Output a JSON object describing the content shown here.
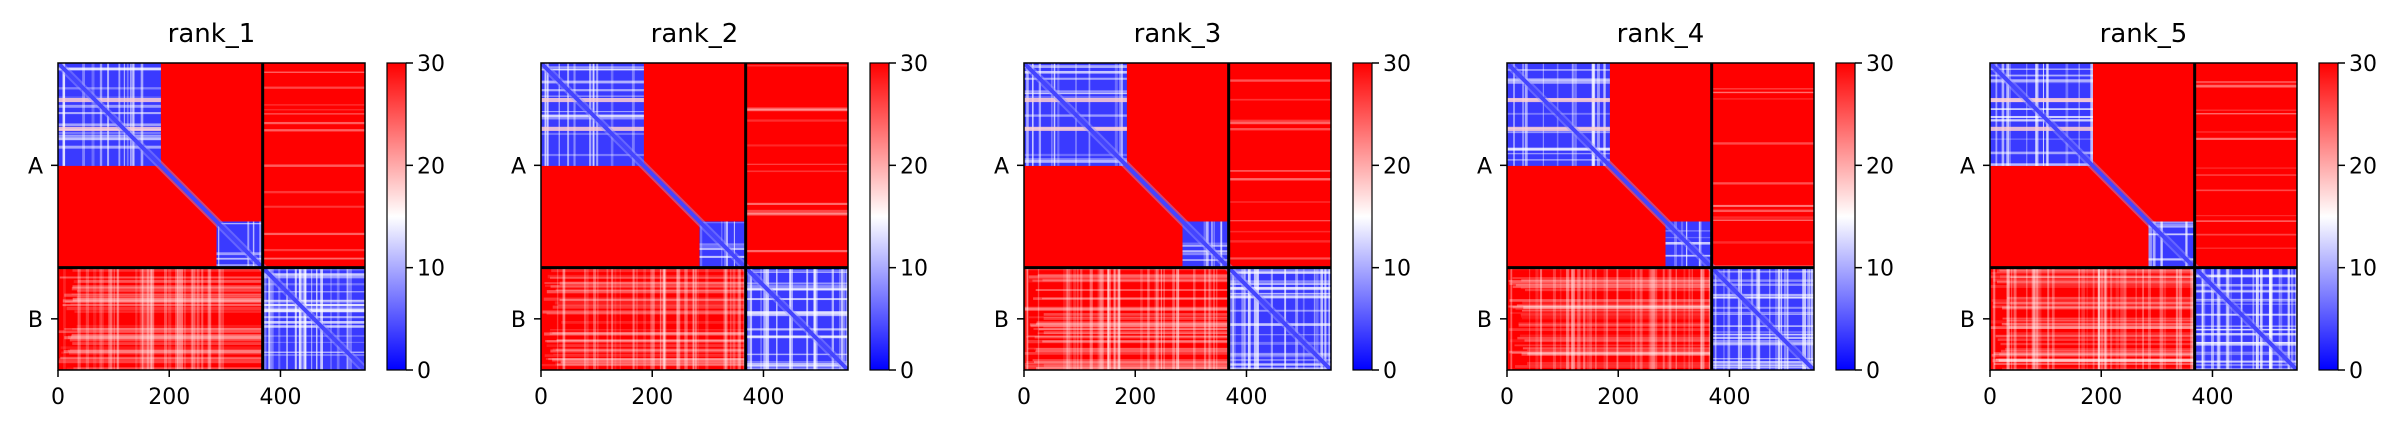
{
  "chart_data": [
    {
      "type": "heatmap",
      "title": "rank_1",
      "chains": [
        "A",
        "B"
      ],
      "chain_boundary": 368,
      "matrix_size": 552,
      "xticks": [
        0,
        200,
        400
      ],
      "xtick_labels": [
        "0",
        "200",
        "400"
      ],
      "colorbar": {
        "min": 0,
        "max": 30,
        "ticks": [
          0,
          10,
          20,
          30
        ],
        "tick_labels": [
          "0",
          "10",
          "20",
          "30"
        ],
        "colors": [
          "#0000ff",
          "#ffffff",
          "#ff0000"
        ]
      },
      "low_error_blocks": [
        [
          0,
          185,
          0,
          185
        ],
        [
          285,
          368,
          285,
          368
        ],
        [
          368,
          552,
          368,
          552
        ]
      ]
    },
    {
      "type": "heatmap",
      "title": "rank_2",
      "chains": [
        "A",
        "B"
      ],
      "chain_boundary": 368,
      "matrix_size": 552,
      "xticks": [
        0,
        200,
        400
      ],
      "xtick_labels": [
        "0",
        "200",
        "400"
      ],
      "colorbar": {
        "min": 0,
        "max": 30,
        "ticks": [
          0,
          10,
          20,
          30
        ],
        "tick_labels": [
          "0",
          "10",
          "20",
          "30"
        ],
        "colors": [
          "#0000ff",
          "#ffffff",
          "#ff0000"
        ]
      },
      "low_error_blocks": [
        [
          0,
          185,
          0,
          185
        ],
        [
          285,
          368,
          285,
          368
        ],
        [
          368,
          552,
          368,
          552
        ]
      ]
    },
    {
      "type": "heatmap",
      "title": "rank_3",
      "chains": [
        "A",
        "B"
      ],
      "chain_boundary": 368,
      "matrix_size": 552,
      "xticks": [
        0,
        200,
        400
      ],
      "xtick_labels": [
        "0",
        "200",
        "400"
      ],
      "colorbar": {
        "min": 0,
        "max": 30,
        "ticks": [
          0,
          10,
          20,
          30
        ],
        "tick_labels": [
          "0",
          "10",
          "20",
          "30"
        ],
        "colors": [
          "#0000ff",
          "#ffffff",
          "#ff0000"
        ]
      },
      "low_error_blocks": [
        [
          0,
          185,
          0,
          185
        ],
        [
          285,
          368,
          285,
          368
        ],
        [
          368,
          552,
          368,
          552
        ]
      ]
    },
    {
      "type": "heatmap",
      "title": "rank_4",
      "chains": [
        "A",
        "B"
      ],
      "chain_boundary": 368,
      "matrix_size": 552,
      "xticks": [
        0,
        200,
        400
      ],
      "xtick_labels": [
        "0",
        "200",
        "400"
      ],
      "colorbar": {
        "min": 0,
        "max": 30,
        "ticks": [
          0,
          10,
          20,
          30
        ],
        "tick_labels": [
          "0",
          "10",
          "20",
          "30"
        ],
        "colors": [
          "#0000ff",
          "#ffffff",
          "#ff0000"
        ]
      },
      "low_error_blocks": [
        [
          0,
          185,
          0,
          185
        ],
        [
          285,
          368,
          285,
          368
        ],
        [
          368,
          552,
          368,
          552
        ]
      ]
    },
    {
      "type": "heatmap",
      "title": "rank_5",
      "chains": [
        "A",
        "B"
      ],
      "chain_boundary": 368,
      "matrix_size": 552,
      "xticks": [
        0,
        200,
        400
      ],
      "xtick_labels": [
        "0",
        "200",
        "400"
      ],
      "colorbar": {
        "min": 0,
        "max": 30,
        "ticks": [
          0,
          10,
          20,
          30
        ],
        "tick_labels": [
          "0",
          "10",
          "20",
          "30"
        ],
        "colors": [
          "#0000ff",
          "#ffffff",
          "#ff0000"
        ]
      },
      "low_error_blocks": [
        [
          0,
          185,
          0,
          185
        ],
        [
          285,
          368,
          285,
          368
        ],
        [
          368,
          552,
          368,
          552
        ]
      ]
    }
  ]
}
